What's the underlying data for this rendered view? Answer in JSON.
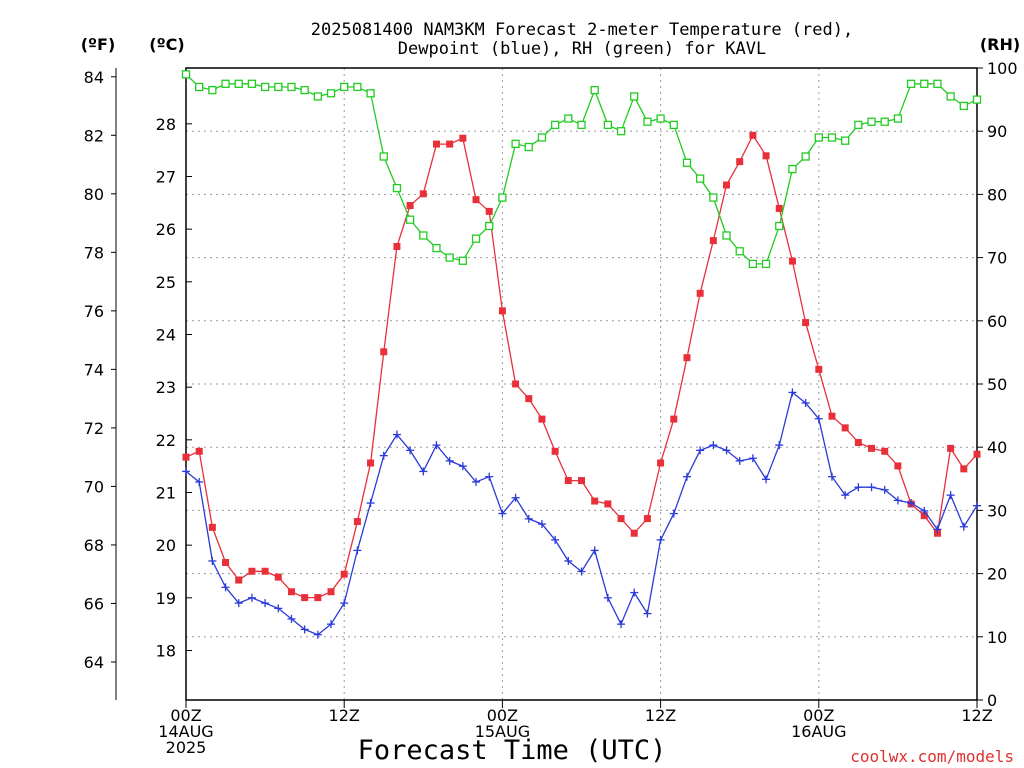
{
  "title_line1": "2025081400 NAM3KM Forecast 2-meter Temperature (red),",
  "title_line2": "Dewpoint (blue), RH (green) for KAVL",
  "credit": "coolwx.com/models",
  "colors": {
    "temperature": "#e8303a",
    "dewpoint": "#2a3ad8",
    "rh": "#22cc22",
    "grid": "#9a9a9a"
  },
  "chart_data": {
    "type": "line",
    "title": "2025081400 NAM3KM Forecast 2-meter Temperature (red), Dewpoint (blue), RH (green) for KAVL",
    "xlabel": "Forecast Time (UTC)",
    "x_unit": "hours since 2025-08-14 00Z",
    "xlim": [
      0,
      60
    ],
    "x_ticks": [
      {
        "x": 0,
        "l1": "00Z",
        "l2": "14AUG",
        "l3": "2025"
      },
      {
        "x": 12,
        "l1": "12Z",
        "l2": "",
        "l3": ""
      },
      {
        "x": 24,
        "l1": "00Z",
        "l2": "15AUG",
        "l3": ""
      },
      {
        "x": 36,
        "l1": "12Z",
        "l2": "",
        "l3": ""
      },
      {
        "x": 48,
        "l1": "00Z",
        "l2": "16AUG",
        "l3": ""
      },
      {
        "x": 60,
        "l1": "12Z",
        "l2": "",
        "l3": ""
      }
    ],
    "axes": {
      "fahrenheit": {
        "label": "(ºF)",
        "ylim": [
          62.7,
          84.3
        ],
        "ticks": [
          64,
          66,
          68,
          70,
          72,
          74,
          76,
          78,
          80,
          82,
          84
        ]
      },
      "celsius": {
        "label": "(ºC)",
        "ylim": [
          17.06,
          29.06
        ],
        "ticks": [
          18,
          19,
          20,
          21,
          22,
          23,
          24,
          25,
          26,
          27,
          28
        ]
      },
      "rh": {
        "label": "(RH)",
        "ylim": [
          0,
          100
        ],
        "ticks": [
          0,
          10,
          20,
          30,
          40,
          50,
          60,
          70,
          80,
          90,
          100
        ]
      }
    },
    "grid": true,
    "series": [
      {
        "name": "Temperature",
        "color": "#e8303a",
        "marker": "filled-square",
        "axis": "fahrenheit",
        "x": [
          0,
          1,
          2,
          3,
          4,
          5,
          6,
          7,
          8,
          9,
          10,
          11,
          12,
          13,
          14,
          15,
          16,
          17,
          18,
          19,
          20,
          21,
          22,
          23,
          24,
          25,
          26,
          27,
          28,
          29,
          30,
          31,
          32,
          33,
          34,
          35,
          36,
          37,
          38,
          39,
          40,
          41,
          42,
          43,
          44,
          45,
          46,
          47,
          48,
          49,
          50,
          51,
          52,
          53,
          54,
          55,
          56,
          57,
          58,
          59,
          60
        ],
        "values": [
          71.0,
          71.2,
          68.6,
          67.4,
          66.8,
          67.1,
          67.1,
          66.9,
          66.4,
          66.2,
          66.2,
          66.4,
          67.0,
          68.8,
          70.8,
          74.6,
          78.2,
          79.6,
          80.0,
          81.7,
          81.7,
          81.9,
          79.8,
          79.4,
          76.0,
          73.5,
          73.0,
          72.3,
          71.2,
          70.2,
          70.2,
          69.5,
          69.4,
          68.9,
          68.4,
          68.9,
          70.8,
          72.3,
          74.4,
          76.6,
          78.4,
          80.3,
          81.1,
          82.0,
          81.3,
          79.5,
          77.7,
          75.6,
          74.0,
          72.4,
          72.0,
          71.5,
          71.3,
          71.2,
          70.7,
          69.4,
          69.0,
          68.4,
          71.3,
          70.6,
          71.1
        ]
      },
      {
        "name": "Dewpoint",
        "color": "#2a3ad8",
        "marker": "plus",
        "axis": "celsius",
        "x": [
          0,
          1,
          2,
          3,
          4,
          5,
          6,
          7,
          8,
          9,
          10,
          11,
          12,
          13,
          14,
          15,
          16,
          17,
          18,
          19,
          20,
          21,
          22,
          23,
          24,
          25,
          26,
          27,
          28,
          29,
          30,
          31,
          32,
          33,
          34,
          35,
          36,
          37,
          38,
          39,
          40,
          41,
          42,
          43,
          44,
          45,
          46,
          47,
          48,
          49,
          50,
          51,
          52,
          53,
          54,
          55,
          56,
          57,
          58,
          59,
          60
        ],
        "values": [
          21.4,
          21.2,
          19.7,
          19.2,
          18.9,
          19.0,
          18.9,
          18.8,
          18.6,
          18.4,
          18.3,
          18.5,
          18.9,
          19.9,
          20.8,
          21.7,
          22.1,
          21.8,
          21.4,
          21.9,
          21.6,
          21.5,
          21.2,
          21.3,
          20.6,
          20.9,
          20.5,
          20.4,
          20.1,
          19.7,
          19.5,
          19.9,
          19.0,
          18.5,
          19.1,
          18.7,
          20.1,
          20.6,
          21.3,
          21.8,
          21.9,
          21.8,
          21.6,
          21.65,
          21.25,
          21.9,
          22.9,
          22.7,
          22.4,
          21.3,
          20.95,
          21.1,
          21.1,
          21.05,
          20.85,
          20.8,
          20.65,
          20.3,
          20.95,
          20.35,
          20.75
        ]
      },
      {
        "name": "RH",
        "color": "#22cc22",
        "marker": "open-square",
        "axis": "rh",
        "x": [
          0,
          1,
          2,
          3,
          4,
          5,
          6,
          7,
          8,
          9,
          10,
          11,
          12,
          13,
          14,
          15,
          16,
          17,
          18,
          19,
          20,
          21,
          22,
          23,
          24,
          25,
          26,
          27,
          28,
          29,
          30,
          31,
          32,
          33,
          34,
          35,
          36,
          37,
          38,
          39,
          40,
          41,
          42,
          43,
          44,
          45,
          46,
          47,
          48,
          49,
          50,
          51,
          52,
          53,
          54,
          55,
          56,
          57,
          58,
          59,
          60
        ],
        "values": [
          99,
          97,
          96.5,
          97.5,
          97.5,
          97.5,
          97,
          97,
          97,
          96.5,
          95.5,
          96,
          97,
          97,
          96,
          86,
          81,
          76,
          73.5,
          71.5,
          70,
          69.5,
          73,
          75,
          79.5,
          88,
          87.5,
          89,
          91,
          92,
          91,
          96.5,
          91,
          90,
          95.5,
          91.5,
          92,
          91,
          85,
          82.5,
          79.5,
          73.5,
          71,
          69,
          69,
          75,
          84,
          86,
          89,
          89,
          88.5,
          91,
          91.5,
          91.5,
          92,
          97.5,
          97.5,
          97.5,
          95.5,
          94,
          95
        ]
      }
    ]
  }
}
